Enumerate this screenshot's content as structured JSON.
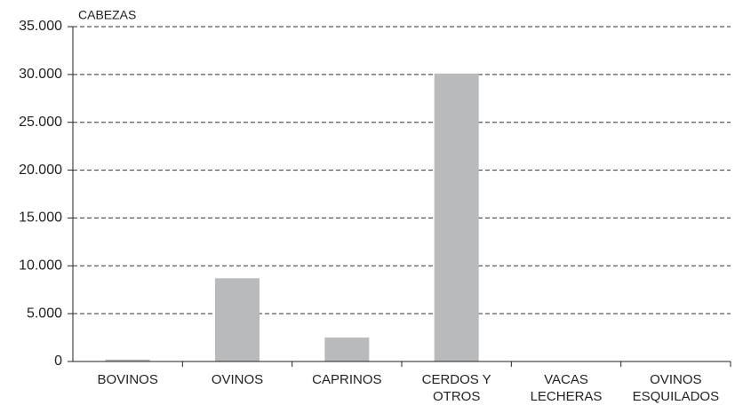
{
  "chart_data": {
    "type": "bar",
    "y_axis_label": "CABEZAS",
    "categories": [
      "BOVINOS",
      "OVINOS",
      "CAPRINOS",
      "CERDOS Y OTROS",
      "VACAS LECHERAS",
      "OVINOS ESQUILADOS"
    ],
    "values": [
      200,
      8700,
      2500,
      30100,
      0,
      0
    ],
    "color": "#b9babc",
    "ylim": [
      0,
      35000
    ],
    "yticks": [
      0,
      {
        "value": 5000,
        "label": "5.000"
      },
      {
        "value": 10000,
        "label": "10.000"
      },
      {
        "value": 15000,
        "label": "15.000"
      },
      {
        "value": 20000,
        "label": "20.000"
      },
      {
        "value": 25000,
        "label": "25.000"
      },
      {
        "value": 30000,
        "label": "30.000"
      },
      {
        "value": 35000,
        "label": "35.000"
      }
    ],
    "grid": true
  }
}
